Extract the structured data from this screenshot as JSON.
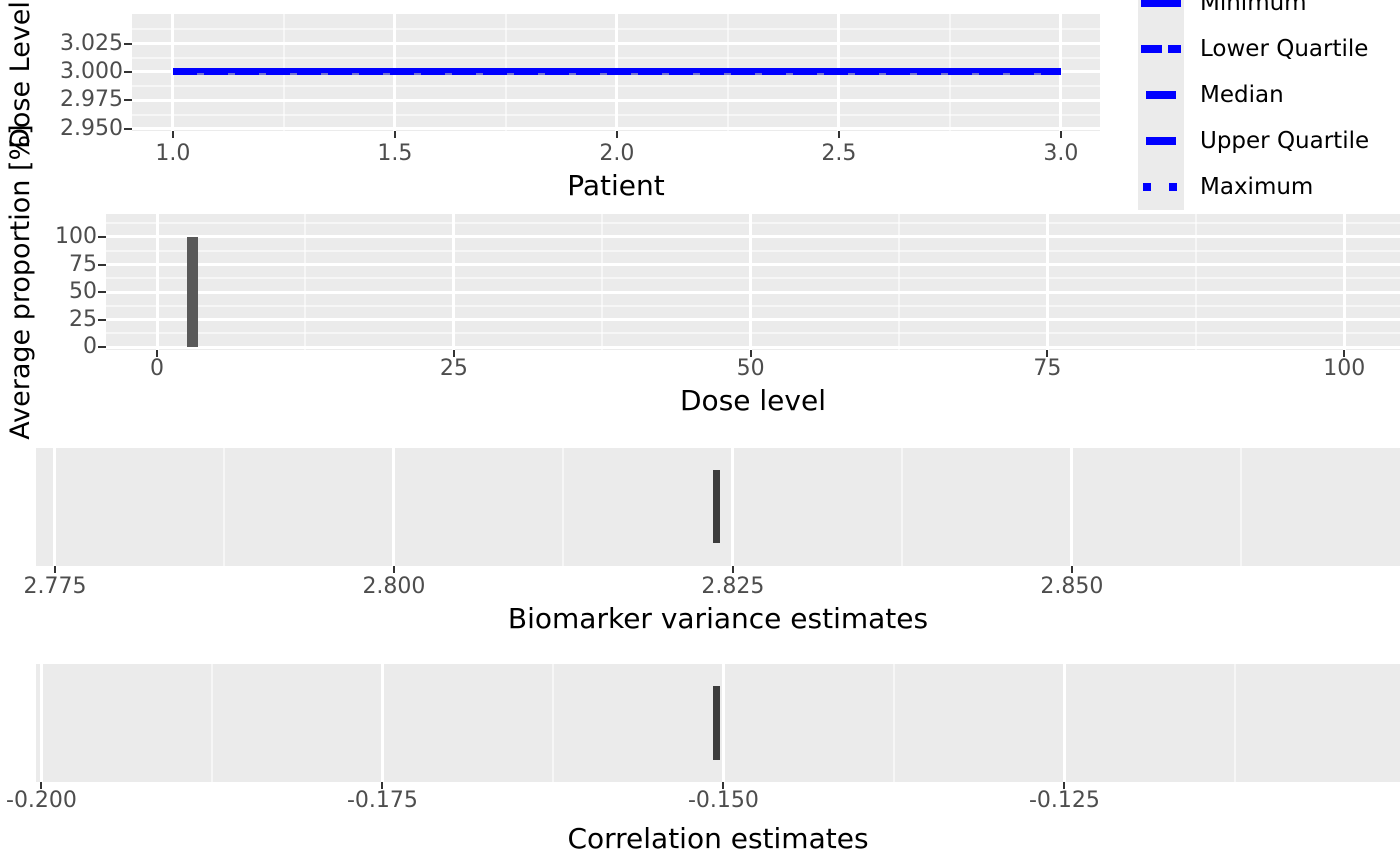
{
  "colors": {
    "panel_bg": "#EBEBEB",
    "grid_major": "#FFFFFF",
    "grid_minor": "rgba(255,255,255,0.55)",
    "tick_mark": "#333333",
    "tick_text": "#4D4D4D",
    "axis_title": "#000000",
    "line_blue": "#0000FF",
    "bar_gray": "#595959",
    "bar_dark": "#3C3C3C",
    "legend_key_bg": "#EBEBEB"
  },
  "legend": {
    "items": [
      {
        "label": "Minimum",
        "linetype": "solid-long"
      },
      {
        "label": "Lower Quartile",
        "linetype": "dashed"
      },
      {
        "label": "Median",
        "linetype": "solid-short"
      },
      {
        "label": "Upper Quartile",
        "linetype": "solid-short"
      },
      {
        "label": "Maximum",
        "linetype": "dotted"
      }
    ]
  },
  "chart_data": [
    {
      "id": "dose-level-vs-patient",
      "type": "line",
      "xlabel": "Patient",
      "ylabel": "Dose Level",
      "xlim": [
        0.908,
        3.088
      ],
      "ylim": [
        2.948,
        3.051
      ],
      "x_ticks": {
        "values": [
          1.0,
          1.5,
          2.0,
          2.5,
          3.0
        ],
        "labels": [
          "1.0",
          "1.5",
          "2.0",
          "2.5",
          "3.0"
        ],
        "minor": [
          1.25,
          1.75,
          2.25,
          2.75
        ]
      },
      "y_ticks": {
        "values": [
          3.025,
          3.0,
          2.975,
          2.95
        ],
        "labels": [
          "3.025",
          "3.000",
          "2.975",
          "2.950"
        ],
        "minor": [
          3.0375,
          3.0125,
          2.9875,
          2.9625
        ]
      },
      "series": [
        {
          "name": "dose-level-all-statistics",
          "x": [
            1.0,
            3.0
          ],
          "y": [
            3.0,
            3.0
          ],
          "color": "#0000FF",
          "note": "Minimum, Lower Quartile, Median, Upper Quartile and Maximum all overlap at dose level 3 for patients 1 to 3"
        }
      ]
    },
    {
      "id": "average-proportion-vs-dose-level",
      "type": "bar",
      "xlabel": "Dose level",
      "ylabel": "Average proportion [%]",
      "xlim": [
        -4.3,
        104.7
      ],
      "ylim": [
        -2.7,
        120.9
      ],
      "x_ticks": {
        "values": [
          0,
          25,
          50,
          75,
          100
        ],
        "labels": [
          "0",
          "25",
          "50",
          "75",
          "100"
        ],
        "minor": [
          12.5,
          37.5,
          62.5,
          87.5
        ]
      },
      "y_ticks": {
        "values": [
          100,
          75,
          50,
          25,
          0
        ],
        "labels": [
          "100",
          "75",
          "50",
          "25",
          "0"
        ],
        "minor": [
          112.5,
          87.5,
          62.5,
          37.5,
          12.5
        ]
      },
      "bars": [
        {
          "x": 3,
          "height": 100,
          "width": 0.93,
          "color": "#595959"
        }
      ]
    },
    {
      "id": "biomarker-variance-estimates",
      "type": "bar",
      "xlabel": "Biomarker variance estimates",
      "ylabel": "",
      "xlim": [
        2.7736,
        2.8742
      ],
      "x_ticks": {
        "values": [
          2.775,
          2.8,
          2.825,
          2.85
        ],
        "labels": [
          "2.775",
          "2.800",
          "2.825",
          "2.850"
        ],
        "minor": [
          2.7875,
          2.8125,
          2.8375,
          2.8625
        ]
      },
      "bars": [
        {
          "x": 2.8238,
          "width": 0.00052,
          "y_frac": [
            0.185,
            0.805
          ],
          "color": "#3C3C3C"
        }
      ]
    },
    {
      "id": "correlation-estimates",
      "type": "bar",
      "xlabel": "Correlation estimates",
      "ylabel": "",
      "xlim": [
        -0.2004,
        -0.1004
      ],
      "x_ticks": {
        "values": [
          -0.2,
          -0.175,
          -0.15,
          -0.125
        ],
        "labels": [
          "-0.200",
          "-0.175",
          "-0.150",
          "-0.125"
        ],
        "minor": [
          -0.1875,
          -0.1625,
          -0.1375,
          -0.1125
        ]
      },
      "bars": [
        {
          "x": -0.1505,
          "width": 0.00048,
          "y_frac": [
            0.185,
            0.81
          ],
          "color": "#3C3C3C"
        }
      ]
    }
  ]
}
